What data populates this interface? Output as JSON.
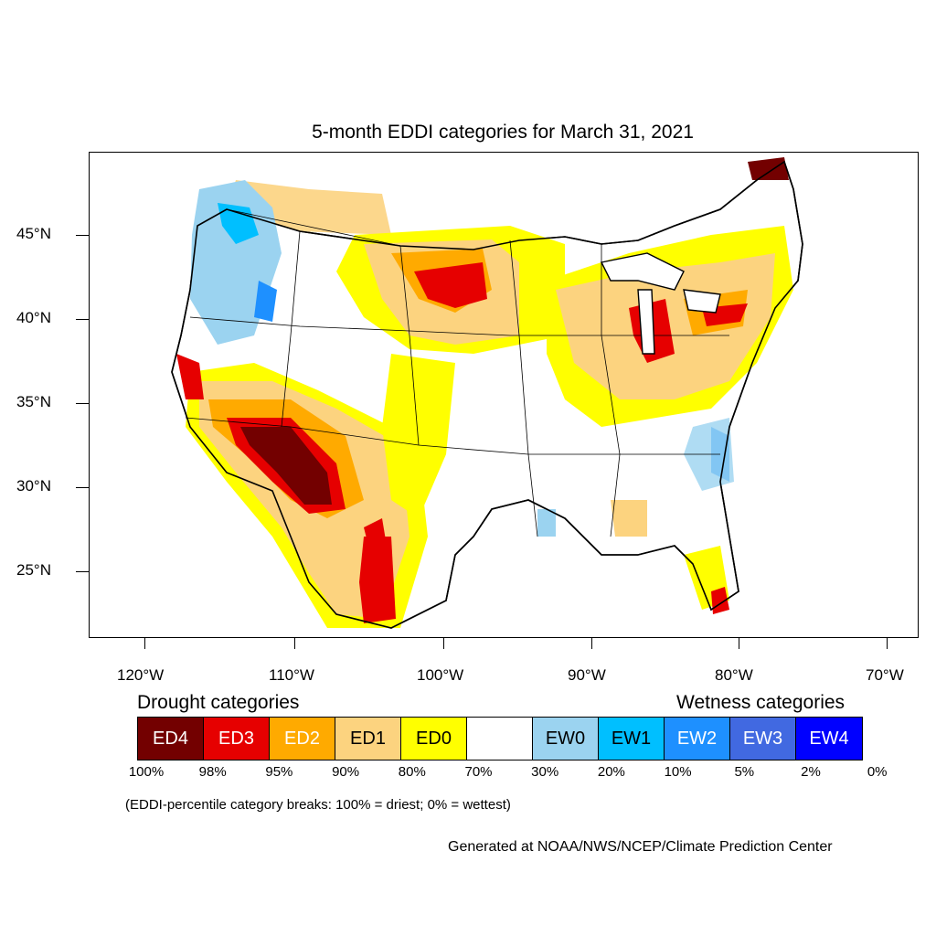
{
  "title": "5-month EDDI categories for March 31, 2021",
  "y_ticks": [
    "45°N",
    "40°N",
    "35°N",
    "30°N",
    "25°N"
  ],
  "x_ticks": [
    "120°W",
    "110°W",
    "100°W",
    "90°W",
    "80°W",
    "70°W"
  ],
  "legend": {
    "drought_heading": "Drought categories",
    "wetness_heading": "Wetness categories",
    "categories": [
      {
        "label": "ED4",
        "color": "#730000",
        "text_color": "#ffffff"
      },
      {
        "label": "ED3",
        "color": "#e60000",
        "text_color": "#ffffff"
      },
      {
        "label": "ED2",
        "color": "#ffaa00",
        "text_color": "#ffffff"
      },
      {
        "label": "ED1",
        "color": "#fcd37f",
        "text_color": "#000000"
      },
      {
        "label": "ED0",
        "color": "#ffff00",
        "text_color": "#000000"
      },
      {
        "label": "",
        "color": "#ffffff",
        "text_color": "#000000"
      },
      {
        "label": "EW0",
        "color": "#9bd3f0",
        "text_color": "#000000"
      },
      {
        "label": "EW1",
        "color": "#00bfff",
        "text_color": "#000000"
      },
      {
        "label": "EW2",
        "color": "#1e90ff",
        "text_color": "#ffffff"
      },
      {
        "label": "EW3",
        "color": "#4169e1",
        "text_color": "#ffffff"
      },
      {
        "label": "EW4",
        "color": "#0000ff",
        "text_color": "#ffffff"
      }
    ],
    "breaks": [
      "100%",
      "98%",
      "95%",
      "90%",
      "80%",
      "70%",
      "30%",
      "20%",
      "10%",
      "5%",
      "2%",
      "0%"
    ]
  },
  "note": "(EDDI-percentile category breaks: 100% = driest; 0% = wettest)",
  "credit": "Generated at NOAA/NWS/NCEP/Climate Prediction Center"
}
